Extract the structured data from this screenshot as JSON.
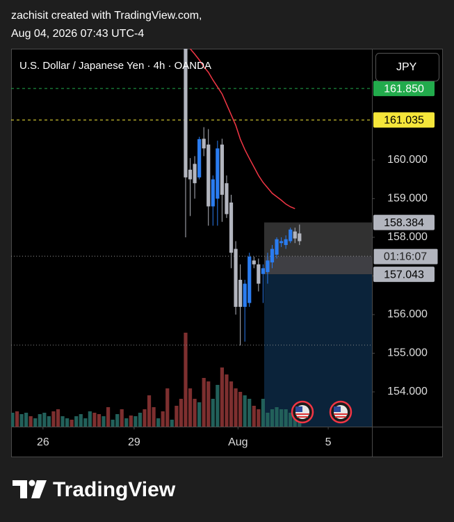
{
  "header": {
    "line1": "zachisit created with TradingView.com,",
    "line2": "Aug 04, 2026 07:43 UTC-4"
  },
  "currency_button": "JPY",
  "brand": "TradingView",
  "chart_data": {
    "type": "candlestick",
    "title": "U.S. Dollar / Japanese Yen · 4h · OANDA",
    "categories": [
      null,
      null,
      null,
      null,
      null,
      null,
      null,
      null,
      null,
      null,
      null,
      null,
      null,
      null,
      null,
      null,
      null,
      null,
      null,
      null,
      null,
      null,
      null,
      null,
      null,
      null,
      null,
      null,
      null,
      null,
      null,
      null,
      null,
      null,
      null,
      null,
      null,
      null,
      null,
      null,
      null,
      null,
      null,
      null,
      null,
      null,
      null,
      null,
      null,
      null,
      null,
      null,
      null,
      null,
      null,
      null,
      null,
      null,
      null,
      null,
      null,
      null,
      null,
      null
    ],
    "xlim": [
      -0.3,
      78.9
    ],
    "xticks": [
      {
        "value": 6.7,
        "label": "26"
      },
      {
        "value": 26.7,
        "label": "29"
      },
      {
        "value": 49.5,
        "label": "Aug"
      },
      {
        "value": 69.3,
        "label": "5"
      }
    ],
    "ylim": [
      153.1,
      162.88
    ],
    "yticks": [
      {
        "value": 154,
        "label": "154.000"
      },
      {
        "value": 155,
        "label": "155.000"
      },
      {
        "value": 156,
        "label": "156.000"
      },
      {
        "value": 157,
        "label": "157.000"
      },
      {
        "value": 158,
        "label": "158.000"
      },
      {
        "value": 159,
        "label": "159.000"
      },
      {
        "value": 160,
        "label": "160.000"
      }
    ],
    "up_color": "#2a7cf0",
    "down_color": "#b2b5be",
    "open": [
      null,
      null,
      null,
      null,
      null,
      null,
      null,
      null,
      null,
      null,
      null,
      null,
      null,
      null,
      null,
      null,
      null,
      null,
      null,
      null,
      null,
      null,
      null,
      null,
      null,
      null,
      null,
      null,
      null,
      null,
      null,
      null,
      null,
      null,
      null,
      null,
      null,
      null,
      163.0,
      159.75,
      159.9,
      159.55,
      160.55,
      160.4,
      158.8,
      159.0,
      160.4,
      159.4,
      158.9,
      157.7,
      156.9,
      156.2,
      156.3,
      157.4,
      157.3,
      157.05,
      157.1,
      157.35,
      157.55,
      157.85,
      157.8,
      157.9,
      158.15,
      158.1
    ],
    "high": [
      null,
      null,
      null,
      null,
      null,
      null,
      null,
      null,
      null,
      null,
      null,
      null,
      null,
      null,
      null,
      null,
      null,
      null,
      null,
      null,
      null,
      null,
      null,
      null,
      null,
      null,
      null,
      null,
      null,
      null,
      null,
      null,
      null,
      null,
      null,
      null,
      null,
      null,
      163.2,
      160.05,
      160.1,
      160.6,
      160.85,
      160.8,
      159.6,
      160.5,
      160.55,
      159.6,
      159.1,
      157.9,
      157.3,
      156.9,
      157.6,
      157.5,
      157.45,
      157.3,
      157.6,
      157.8,
      158.0,
      158.0,
      158.05,
      158.25,
      158.25,
      158.33
    ],
    "low": [
      null,
      null,
      null,
      null,
      null,
      null,
      null,
      null,
      null,
      null,
      null,
      null,
      null,
      null,
      null,
      null,
      null,
      null,
      null,
      null,
      null,
      null,
      null,
      null,
      null,
      null,
      null,
      null,
      null,
      null,
      null,
      null,
      null,
      null,
      null,
      null,
      null,
      null,
      158.0,
      158.55,
      159.0,
      159.5,
      160.1,
      158.3,
      158.3,
      158.3,
      158.4,
      158.5,
      157.2,
      156.0,
      155.2,
      155.3,
      156.2,
      157.2,
      156.6,
      156.3,
      156.8,
      157.2,
      157.45,
      157.75,
      157.7,
      157.85,
      157.85,
      157.8
    ],
    "close": [
      null,
      null,
      null,
      null,
      null,
      null,
      null,
      null,
      null,
      null,
      null,
      null,
      null,
      null,
      null,
      null,
      null,
      null,
      null,
      null,
      null,
      null,
      null,
      null,
      null,
      null,
      null,
      null,
      null,
      null,
      null,
      null,
      null,
      null,
      null,
      null,
      null,
      null,
      159.55,
      159.5,
      159.4,
      160.54,
      160.3,
      158.8,
      159.5,
      160.3,
      159.1,
      158.6,
      157.6,
      156.2,
      156.2,
      156.8,
      157.5,
      157.3,
      156.8,
      157.2,
      157.4,
      157.7,
      157.95,
      157.9,
      157.95,
      158.2,
      157.97,
      157.9
    ],
    "ma": {
      "color": "#f23645",
      "values": [
        null,
        null,
        null,
        null,
        null,
        null,
        null,
        null,
        null,
        null,
        null,
        null,
        null,
        null,
        null,
        null,
        null,
        null,
        null,
        null,
        null,
        null,
        null,
        null,
        null,
        null,
        null,
        null,
        null,
        null,
        null,
        null,
        null,
        null,
        null,
        null,
        null,
        null,
        null,
        162.88,
        162.74,
        162.59,
        162.41,
        162.27,
        162.07,
        161.89,
        161.71,
        161.44,
        161.17,
        160.9,
        160.54,
        160.27,
        160.04,
        159.82,
        159.6,
        159.42,
        159.28,
        159.14,
        159.05,
        158.96,
        158.86,
        158.79,
        158.74,
        null
      ]
    },
    "volume": {
      "values": [
        20,
        22,
        18,
        20,
        15,
        12,
        18,
        20,
        15,
        22,
        25,
        15,
        12,
        10,
        15,
        18,
        12,
        22,
        20,
        18,
        15,
        28,
        10,
        18,
        25,
        12,
        16,
        15,
        20,
        25,
        45,
        28,
        12,
        22,
        55,
        10,
        30,
        40,
        135,
        55,
        40,
        35,
        70,
        65,
        40,
        60,
        85,
        75,
        65,
        55,
        50,
        45,
        40,
        30,
        25,
        40,
        20,
        25,
        28,
        25,
        25,
        20,
        20,
        15
      ],
      "colors": [
        "#22605a",
        "#7d2f2f",
        "#22605a",
        "#22605a",
        "#7d2f2f",
        "#22605a",
        "#22605a",
        "#22605a",
        "#22605a",
        "#7d2f2f",
        "#7d2f2f",
        "#22605a",
        "#22605a",
        "#7d2f2f",
        "#22605a",
        "#22605a",
        "#22605a",
        "#22605a",
        "#7d2f2f",
        "#7d2f2f",
        "#22605a",
        "#7d2f2f",
        "#22605a",
        "#22605a",
        "#7d2f2f",
        "#22605a",
        "#7d2f2f",
        "#22605a",
        "#22605a",
        "#7d2f2f",
        "#7d2f2f",
        "#7d2f2f",
        "#22605a",
        "#7d2f2f",
        "#7d2f2f",
        "#22605a",
        "#7d2f2f",
        "#7d2f2f",
        "#7d2f2f",
        "#7d2f2f",
        "#7d2f2f",
        "#22605a",
        "#7d2f2f",
        "#7d2f2f",
        "#22605a",
        "#22605a",
        "#7d2f2f",
        "#7d2f2f",
        "#7d2f2f",
        "#7d2f2f",
        "#7d2f2f",
        "#22605a",
        "#22605a",
        "#7d2f2f",
        "#7d2f2f",
        "#22605a",
        "#22605a",
        "#22605a",
        "#22605a",
        "#22605a",
        "#22605a",
        "#22605a",
        "#22605a",
        "#22605a"
      ]
    },
    "price_labels": [
      {
        "value": 161.85,
        "label": "161.850",
        "color": "#22ab4c",
        "text_color": "#ffffff",
        "line": "dashed"
      },
      {
        "value": 161.035,
        "label": "161.035",
        "color": "#f5e63a",
        "text_color": "#000000",
        "line": "dashed"
      },
      {
        "value": 158.384,
        "label": "158.384",
        "color": "#b2b5be",
        "text_color": "#000000",
        "line": "none"
      },
      {
        "value": 157.043,
        "label": "157.043",
        "color": "#b2b5be",
        "text_color": "#000000",
        "line": "none"
      }
    ],
    "current_price": 157.51,
    "countdown": "01:16:07",
    "dotted_levels": [
      155.21
    ]
  }
}
